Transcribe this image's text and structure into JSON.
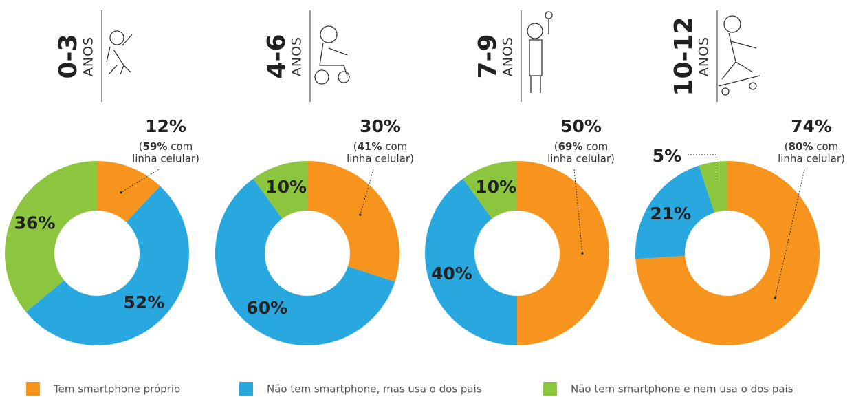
{
  "legend": [
    {
      "name": "Tem smartphone próprio",
      "color": "#f7941d"
    },
    {
      "name": "Não tem smartphone, mas usa o dos pais",
      "color": "#29a8e0"
    },
    {
      "name": "Não tem smartphone e nem usa o dos pais",
      "color": "#8cc63f"
    }
  ],
  "chart_data": [
    {
      "type": "donut",
      "title": "0-3",
      "subtitle": "ANOS",
      "values": [
        12,
        52,
        36
      ],
      "value_labels": [
        "12%",
        "52%",
        "36%"
      ],
      "note": [
        "(",
        "59%",
        " com",
        "linha celular)"
      ]
    },
    {
      "type": "donut",
      "title": "4-6",
      "subtitle": "ANOS",
      "values": [
        30,
        60,
        10
      ],
      "value_labels": [
        "30%",
        "60%",
        "10%"
      ],
      "note": [
        "(",
        "41%",
        " com",
        "linha celular)"
      ]
    },
    {
      "type": "donut",
      "title": "7-9",
      "subtitle": "ANOS",
      "values": [
        50,
        40,
        10
      ],
      "value_labels": [
        "50%",
        "40%",
        "10%"
      ],
      "note": [
        "(",
        "69%",
        " com",
        "linha celular)"
      ]
    },
    {
      "type": "donut",
      "title": "10-12",
      "subtitle": "ANOS",
      "values": [
        74,
        21,
        5
      ],
      "value_labels": [
        "74%",
        "21%",
        "5%"
      ],
      "note": [
        "(",
        "80%",
        " com",
        "linha celular)"
      ]
    }
  ]
}
